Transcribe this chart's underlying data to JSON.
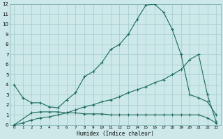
{
  "xlabel": "Humidex (Indice chaleur)",
  "bg_color": "#cce8e8",
  "grid_color": "#aad0d0",
  "line_color": "#1a6b5a",
  "xlim": [
    -0.5,
    23.5
  ],
  "ylim": [
    0,
    12
  ],
  "xticks": [
    0,
    1,
    2,
    3,
    4,
    5,
    6,
    7,
    8,
    9,
    10,
    11,
    12,
    13,
    14,
    15,
    16,
    17,
    18,
    19,
    20,
    21,
    22,
    23
  ],
  "yticks": [
    0,
    1,
    2,
    3,
    4,
    5,
    6,
    7,
    8,
    9,
    10,
    11,
    12
  ],
  "line1_x": [
    0,
    1,
    2,
    3,
    4,
    5,
    6,
    7,
    8,
    9,
    10,
    11,
    12,
    13,
    14,
    15,
    16,
    17,
    18,
    19,
    20,
    21,
    22,
    23
  ],
  "line1_y": [
    4.0,
    2.7,
    2.2,
    2.2,
    1.8,
    1.7,
    2.5,
    3.2,
    4.8,
    5.3,
    6.2,
    7.5,
    8.0,
    9.0,
    10.5,
    11.9,
    12.0,
    11.2,
    9.5,
    7.0,
    3.0,
    2.7,
    2.3,
    1.0
  ],
  "line2_x": [
    0,
    1,
    2,
    3,
    4,
    5,
    6,
    7,
    8,
    9,
    10,
    11,
    12,
    13,
    14,
    15,
    16,
    17,
    18,
    19,
    20,
    21,
    22,
    23
  ],
  "line2_y": [
    0.0,
    0.2,
    0.5,
    0.7,
    0.8,
    1.0,
    1.2,
    1.5,
    1.8,
    2.0,
    2.3,
    2.5,
    2.8,
    3.2,
    3.5,
    3.8,
    4.2,
    4.5,
    5.0,
    5.5,
    6.5,
    7.0,
    3.0,
    0.3
  ],
  "line3_x": [
    0,
    2,
    3,
    4,
    5,
    6,
    7,
    8,
    9,
    10,
    11,
    12,
    13,
    14,
    15,
    16,
    17,
    18,
    19,
    20,
    21,
    22,
    23
  ],
  "line3_y": [
    0.0,
    1.2,
    1.3,
    1.3,
    1.3,
    1.2,
    1.2,
    1.1,
    1.1,
    1.1,
    1.0,
    1.0,
    1.0,
    1.0,
    1.0,
    1.0,
    1.0,
    1.0,
    1.0,
    1.0,
    1.0,
    0.7,
    0.2
  ]
}
